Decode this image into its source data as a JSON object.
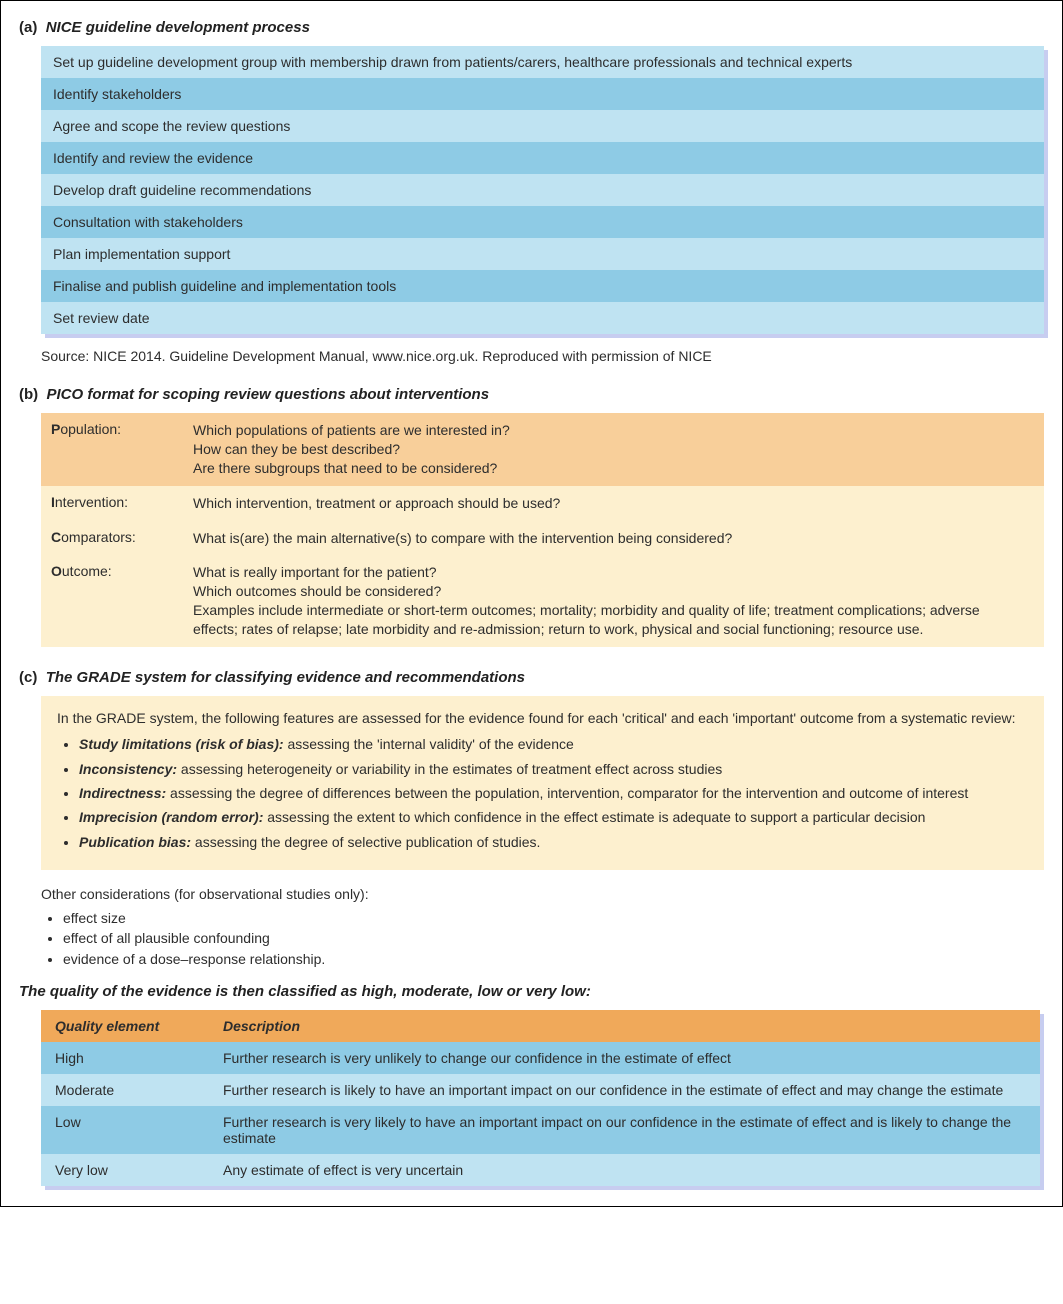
{
  "colors": {
    "blue_light": "#bfe3f2",
    "blue_dark": "#8ecbe5",
    "pico_bg": "#fdf0cf",
    "pico_first": "#f8cf9a",
    "orange_hdr": "#f0a95a",
    "table_shadow": "#c7cdf0",
    "text": "#2d2d2d"
  },
  "a": {
    "marker": "(a)",
    "title": "NICE guideline development process",
    "rows": [
      "Set up guideline development group with membership drawn from patients/carers, healthcare professionals and technical experts",
      "Identify stakeholders",
      "Agree and scope the review questions",
      "Identify and review the evidence",
      "Develop draft guideline recommendations",
      "Consultation with stakeholders",
      "Plan implementation support",
      "Finalise and publish guideline and implementation tools",
      "Set review date"
    ],
    "source": "Source: NICE 2014. Guideline Development Manual, www.nice.org.uk. Reproduced with permission of NICE"
  },
  "b": {
    "marker": "(b)",
    "title": "PICO format for scoping review questions about interventions",
    "rows": [
      {
        "lead": "P",
        "rest": "opulation:",
        "text": "Which populations of patients are we interested in?\nHow can they be best described?\nAre there subgroups that need to be considered?"
      },
      {
        "lead": "I",
        "rest": "ntervention:",
        "text": "Which intervention, treatment or approach should be used?"
      },
      {
        "lead": "C",
        "rest": "omparators:",
        "text": "What is(are) the main alternative(s) to compare with the intervention being considered?"
      },
      {
        "lead": "O",
        "rest": "utcome:",
        "text": "What is really important for the patient?\nWhich outcomes should be considered?\nExamples include intermediate or short-term outcomes; mortality; morbidity and quality of life; treatment complications; adverse effects; rates of relapse; late morbidity and re-admission; return to work, physical and social functioning; resource use."
      }
    ]
  },
  "c": {
    "marker": "(c)",
    "title": "The GRADE system for classifying evidence and recommendations",
    "intro": "In the GRADE system, the following features are assessed for the evidence found for each 'critical' and each 'important' outcome from a systematic review:",
    "features": [
      {
        "term": "Study limitations (risk of bias):",
        "desc": "assessing the 'internal validity' of the evidence"
      },
      {
        "term": "Inconsistency:",
        "desc": "assessing heterogeneity or variability in the estimates of treatment effect across studies"
      },
      {
        "term": "Indirectness:",
        "desc": "assessing the degree of differences between the population, intervention, comparator for the intervention and outcome of interest"
      },
      {
        "term": "Imprecision (random error):",
        "desc": "assessing the extent to which confidence in the effect estimate is adequate to support a particular decision"
      },
      {
        "term": "Publication bias:",
        "desc": "assessing the degree of selective publication of studies."
      }
    ],
    "other_intro": "Other considerations (for observational studies only):",
    "other": [
      "effect size",
      "effect of all plausible confounding",
      "evidence of a dose–response relationship."
    ],
    "classify": "The quality of the evidence is then classified as high, moderate, low or very low:",
    "table": {
      "head": [
        "Quality element",
        "Description"
      ],
      "rows": [
        [
          "High",
          "Further research is very unlikely to change our confidence in the estimate of effect"
        ],
        [
          "Moderate",
          "Further research is likely to have an important impact on our confidence in the estimate of effect and may change the estimate"
        ],
        [
          "Low",
          "Further research is very likely to have an important impact on our confidence in the estimate of effect and is likely to change the estimate"
        ],
        [
          "Very low",
          "Any estimate of effect is very uncertain"
        ]
      ]
    }
  }
}
